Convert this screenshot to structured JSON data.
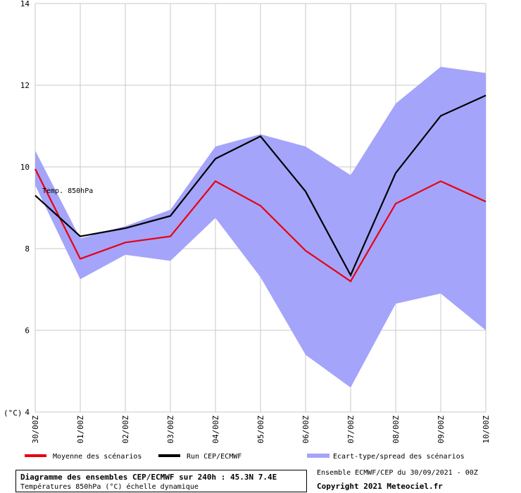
{
  "chart_data": {
    "type": "line",
    "categories": [
      "30/00Z",
      "01/00Z",
      "02/00Z",
      "03/00Z",
      "04/00Z",
      "05/00Z",
      "06/00Z",
      "07/00Z",
      "08/00Z",
      "09/00Z",
      "10/00Z"
    ],
    "ylim": [
      4,
      14
    ],
    "y_ticks": [
      "4",
      "6",
      "8",
      "10",
      "12",
      "14"
    ],
    "y_unit_label": "(°C)",
    "grid": true,
    "annotation": "Temp. 850hPa",
    "spread": {
      "name": "Ecart-type/spread des scénarios",
      "color": "#a4a4fa",
      "upper": [
        10.4,
        8.25,
        8.55,
        8.95,
        10.5,
        10.8,
        10.5,
        9.8,
        11.55,
        12.45,
        12.3
      ],
      "lower": [
        9.55,
        7.25,
        7.85,
        7.7,
        8.75,
        7.3,
        5.4,
        4.6,
        6.65,
        6.9,
        6.0
      ]
    },
    "series": [
      {
        "name": "Moyenne des scénarios",
        "color": "#e8000f",
        "values": [
          9.95,
          7.75,
          8.15,
          8.3,
          9.65,
          9.05,
          7.95,
          7.2,
          9.1,
          9.65,
          9.15
        ]
      },
      {
        "name": "Run CEP/ECMWF",
        "color": "#000000",
        "values": [
          9.3,
          8.3,
          8.5,
          8.8,
          10.2,
          10.75,
          9.4,
          7.35,
          9.85,
          11.25,
          11.75
        ]
      }
    ]
  },
  "footer": {
    "title": "Diagramme des ensembles CEP/ECMWF sur 240h : 45.3N 7.4E",
    "subtitle": "Températures 850hPa (°C) échelle dynamique",
    "ensemble_run": "Ensemble ECMWF/CEP du 30/09/2021 - 00Z",
    "copyright": "Copyright 2021 Meteociel.fr"
  }
}
